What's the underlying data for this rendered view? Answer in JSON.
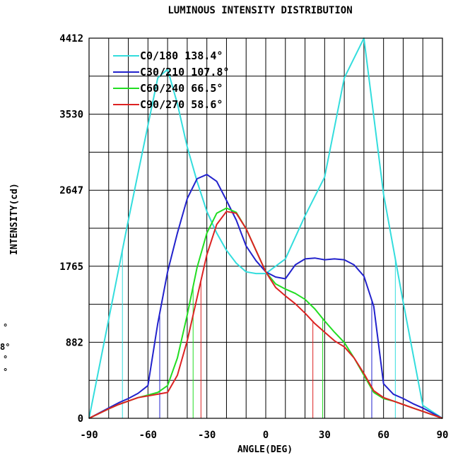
{
  "chart_data": {
    "type": "line",
    "title": "LUMINOUS INTENSITY DISTRIBUTION",
    "xlabel": "ANGLE(DEG)",
    "ylabel": "INTENSITY(cd)",
    "xlim": [
      -90,
      90
    ],
    "ylim": [
      0,
      4412
    ],
    "x_ticks": [
      -90,
      -60,
      -30,
      0,
      30,
      60,
      90
    ],
    "x_tick_labels": [
      "-90",
      "-60",
      "-30",
      "0",
      "30",
      "60",
      "90"
    ],
    "y_ticks": [
      0,
      882,
      1765,
      2647,
      3530,
      4412
    ],
    "y_tick_labels": [
      "0",
      "882",
      "1765",
      "2647",
      "3530",
      "4412"
    ],
    "grid": true,
    "legend_position": "top-left",
    "series": [
      {
        "name": "C0/180 138.4°",
        "color": "#33dddd",
        "beam_half_angles": [
          -73,
          66
        ],
        "x": [
          -90,
          -80,
          -70,
          -60,
          -55,
          -50,
          -45,
          -40,
          -35,
          -30,
          -25,
          -20,
          -15,
          -10,
          -5,
          0,
          10,
          20,
          30,
          40,
          50,
          60,
          70,
          80,
          90
        ],
        "y": [
          0,
          1150,
          2300,
          3400,
          3950,
          4050,
          3650,
          3150,
          2750,
          2400,
          2150,
          1950,
          1800,
          1700,
          1680,
          1680,
          1850,
          2350,
          2800,
          3950,
          4412,
          2600,
          1350,
          150,
          0
        ]
      },
      {
        "name": "C30/210 107.8°",
        "color": "#2222cc",
        "beam_half_angles": [
          -54,
          54
        ],
        "x": [
          -90,
          -80,
          -75,
          -70,
          -65,
          -60,
          -55,
          -50,
          -45,
          -40,
          -35,
          -30,
          -25,
          -20,
          -15,
          -10,
          -5,
          0,
          5,
          10,
          15,
          20,
          25,
          30,
          35,
          40,
          45,
          50,
          55,
          60,
          65,
          70,
          75,
          80,
          85,
          90
        ],
        "y": [
          0,
          120,
          180,
          230,
          290,
          380,
          1100,
          1700,
          2150,
          2550,
          2780,
          2830,
          2750,
          2530,
          2300,
          2000,
          1830,
          1700,
          1640,
          1620,
          1780,
          1850,
          1860,
          1840,
          1850,
          1840,
          1780,
          1650,
          1300,
          400,
          280,
          230,
          170,
          120,
          60,
          0
        ]
      },
      {
        "name": "C60/240 66.5°",
        "color": "#22dd22",
        "beam_half_angles": [
          -37,
          29
        ],
        "x": [
          -90,
          -80,
          -75,
          -70,
          -65,
          -60,
          -55,
          -50,
          -45,
          -40,
          -35,
          -30,
          -25,
          -20,
          -15,
          -10,
          -5,
          0,
          5,
          10,
          15,
          20,
          25,
          30,
          35,
          40,
          45,
          50,
          55,
          60,
          65,
          70,
          75,
          80,
          85,
          90
        ],
        "y": [
          0,
          110,
          160,
          200,
          240,
          270,
          300,
          380,
          700,
          1200,
          1750,
          2150,
          2380,
          2440,
          2390,
          2200,
          1950,
          1700,
          1560,
          1500,
          1450,
          1380,
          1270,
          1130,
          1000,
          880,
          700,
          500,
          300,
          230,
          200,
          160,
          120,
          80,
          40,
          0
        ]
      },
      {
        "name": "C90/270 58.6°",
        "color": "#dd2222",
        "beam_half_angles": [
          -33,
          24
        ],
        "x": [
          -90,
          -80,
          -75,
          -70,
          -65,
          -60,
          -55,
          -50,
          -45,
          -40,
          -35,
          -30,
          -25,
          -20,
          -15,
          -10,
          -5,
          0,
          5,
          10,
          15,
          20,
          25,
          30,
          35,
          40,
          45,
          50,
          55,
          60,
          65,
          70,
          75,
          80,
          85,
          90
        ],
        "y": [
          0,
          110,
          160,
          200,
          240,
          260,
          280,
          300,
          500,
          900,
          1400,
          1900,
          2250,
          2400,
          2380,
          2200,
          1950,
          1700,
          1520,
          1420,
          1330,
          1220,
          1100,
          1000,
          900,
          830,
          700,
          520,
          320,
          240,
          200,
          160,
          120,
          80,
          40,
          0
        ]
      }
    ]
  },
  "margin_marks": [
    "°",
    "8°",
    "°",
    "°"
  ]
}
